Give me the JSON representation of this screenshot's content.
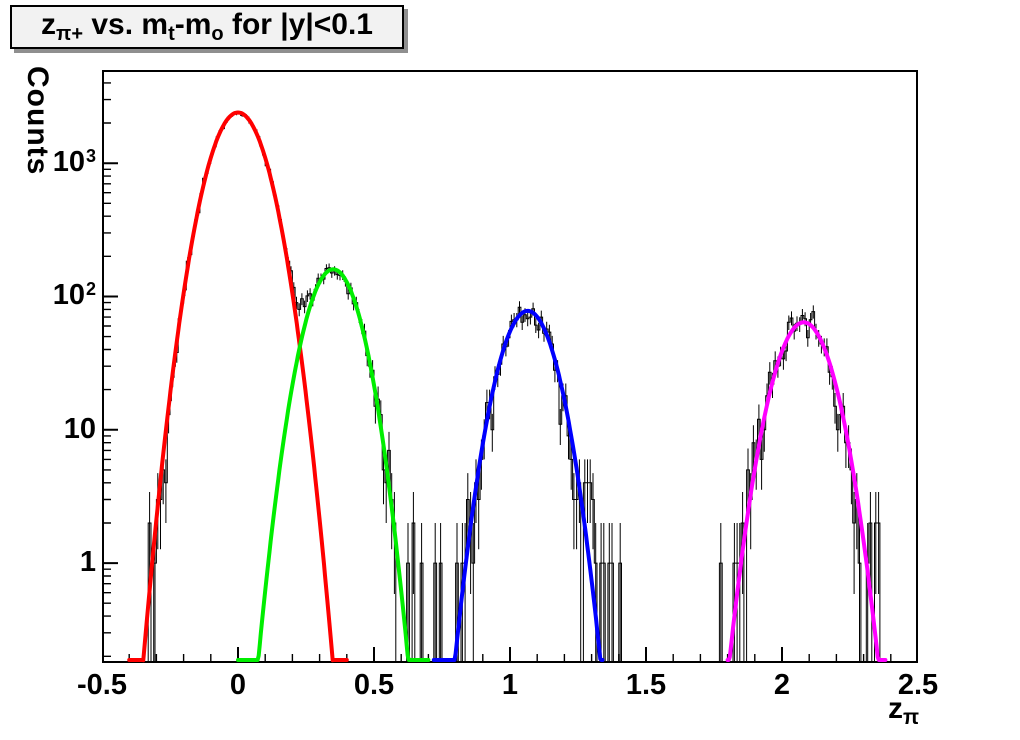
{
  "title": {
    "pre": "z",
    "pre_sub": "π+",
    "mid": " vs. m",
    "mid_sub": "t",
    "mid2": "-m",
    "mid2_sub": "o",
    "post": " for |y|<0.1"
  },
  "axes": {
    "y_label": "Counts",
    "x_label_base": "z",
    "x_label_sub": "π"
  },
  "chart_data": {
    "type": "histogram",
    "title": "z_π+ vs. m_t-m_o for |y|<0.1",
    "xlabel": "z_π",
    "ylabel": "Counts",
    "yscale": "log",
    "grid": false,
    "legend": "none",
    "xlim": [
      -0.5,
      2.5
    ],
    "ylim": [
      0.178,
      5000
    ],
    "x_tick_values": [
      -0.5,
      0,
      0.5,
      1,
      1.5,
      2,
      2.5
    ],
    "x_tick_labels": [
      "-0.5",
      "0",
      "0.5",
      "1",
      "1.5",
      "2",
      "2.5"
    ],
    "x_minor_tick_step": 0.1,
    "y_tick_labels": [
      {
        "base": "1",
        "exp": "",
        "value": 1
      },
      {
        "base": "10",
        "exp": "",
        "value": 10
      },
      {
        "base": "10",
        "exp": "2",
        "value": 100
      },
      {
        "base": "10",
        "exp": "3",
        "value": 1000
      }
    ],
    "bin_width": 0.01,
    "histogram_color": "#000000",
    "histogram_peaks": [
      {
        "center": 0.0,
        "max_counts": 2400
      },
      {
        "center": 0.35,
        "max_counts": 165
      },
      {
        "center": 1.06,
        "max_counts": 90
      },
      {
        "center": 2.08,
        "max_counts": 70
      }
    ],
    "fits": [
      {
        "name": "gaussian-fit-1",
        "color": "#ff0000",
        "amplitude": 2400,
        "mean": 0.0,
        "sigma": 0.08,
        "draw_range": [
          -0.4,
          0.4
        ]
      },
      {
        "name": "gaussian-fit-2",
        "color": "#00ee00",
        "amplitude": 160,
        "mean": 0.35,
        "sigma": 0.075,
        "draw_range": [
          0.0,
          0.7
        ]
      },
      {
        "name": "gaussian-fit-3",
        "color": "#0000ff",
        "amplitude": 78,
        "mean": 1.065,
        "sigma": 0.077,
        "draw_range": [
          0.72,
          1.34
        ]
      },
      {
        "name": "gaussian-fit-4",
        "color": "#ff00ff",
        "amplitude": 64,
        "mean": 2.08,
        "sigma": 0.08,
        "draw_range": [
          1.8,
          2.38
        ]
      }
    ],
    "background_regions": [
      {
        "range": [
          0.55,
          0.85
        ],
        "level": 0.35
      },
      {
        "range": [
          1.26,
          1.42
        ],
        "level": 0.35
      },
      {
        "range": [
          2.33,
          2.46
        ],
        "level": 0.18
      }
    ],
    "noise_seed": 1337
  }
}
